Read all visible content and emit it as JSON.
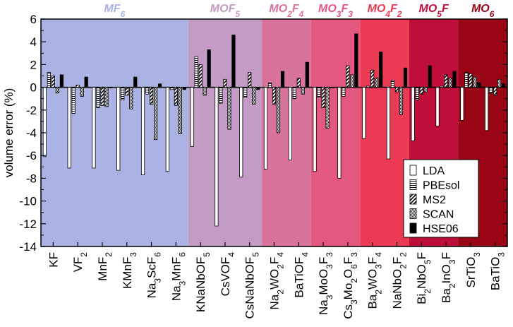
{
  "chart_data": {
    "type": "bar",
    "ylabel": "volume error (%)",
    "ylim": [
      -14,
      6
    ],
    "yticks": [
      -14,
      -12,
      -10,
      -8,
      -6,
      -4,
      -2,
      0,
      2,
      4,
      6
    ],
    "categories": [
      {
        "label": "KF",
        "rich": [
          "KF"
        ]
      },
      {
        "label": "VF2",
        "rich": [
          "VF",
          {
            "s": "2"
          }
        ]
      },
      {
        "label": "MnF2",
        "rich": [
          "MnF",
          {
            "s": "2"
          }
        ]
      },
      {
        "label": "KMnF3",
        "rich": [
          "KMnF",
          {
            "s": "3"
          }
        ]
      },
      {
        "label": "Na3ScF6",
        "rich": [
          "Na",
          {
            "s": "3"
          },
          "ScF",
          {
            "s": "6"
          }
        ]
      },
      {
        "label": "Na3MnF6",
        "rich": [
          "Na",
          {
            "s": "3"
          },
          "MnF",
          {
            "s": "6"
          }
        ]
      },
      {
        "label": "KNaNbOF5",
        "rich": [
          "KNaNbOF",
          {
            "s": "5"
          }
        ]
      },
      {
        "label": "CsVOF4",
        "rich": [
          "CsVOF",
          {
            "s": "4"
          }
        ]
      },
      {
        "label": "CsNaNbOF5",
        "rich": [
          "CsNaNbOF",
          {
            "s": "5"
          }
        ]
      },
      {
        "label": "Na2WO2F4",
        "rich": [
          "Na",
          {
            "s": "2"
          },
          "WO",
          {
            "s": "2"
          },
          "F",
          {
            "s": "4"
          }
        ]
      },
      {
        "label": "BaTiOF4",
        "rich": [
          "BaTiOF",
          {
            "s": "4"
          }
        ]
      },
      {
        "label": "Na3MoO3F3",
        "rich": [
          "Na",
          {
            "s": "3"
          },
          "MoO",
          {
            "s": "3"
          },
          "F",
          {
            "s": "3"
          }
        ]
      },
      {
        "label": "Cs3Mo2O6F3",
        "rich": [
          "Cs",
          {
            "s": "3"
          },
          "Mo",
          {
            "s": "2"
          },
          "O",
          {
            "s": "6"
          },
          "F",
          {
            "s": "3"
          }
        ]
      },
      {
        "label": "Ba2WO3F4",
        "rich": [
          "Ba",
          {
            "s": "2"
          },
          "WO",
          {
            "s": "3"
          },
          "F",
          {
            "s": "4"
          }
        ]
      },
      {
        "label": "NaNbO2F2",
        "rich": [
          "NaNbO",
          {
            "s": "2"
          },
          "F",
          {
            "s": "2"
          }
        ]
      },
      {
        "label": "Bi2NbO5F",
        "rich": [
          "Bi",
          {
            "s": "2"
          },
          "NbO",
          {
            "s": "5"
          },
          "F"
        ]
      },
      {
        "label": "Ba2InO3F",
        "rich": [
          "Ba",
          {
            "s": "2"
          },
          "InO",
          {
            "s": "3"
          },
          "F"
        ]
      },
      {
        "label": "SrTiO3",
        "rich": [
          "SrTiO",
          {
            "s": "3"
          }
        ]
      },
      {
        "label": "BaTiO3",
        "rich": [
          "BaTiO",
          {
            "s": "3"
          }
        ]
      }
    ],
    "series": [
      {
        "name": "LDA",
        "pattern": "white",
        "values": [
          -6.1,
          -7.1,
          -7.1,
          -7.3,
          -7.7,
          -7.4,
          -5.2,
          -12.2,
          -7.9,
          -7.2,
          -6.4,
          -7.4,
          -8.0,
          -4.5,
          -6.3,
          -4.7,
          -3.4,
          -2.9,
          -3.8
        ]
      },
      {
        "name": "PBEsol",
        "pattern": "hstripe",
        "values": [
          1.3,
          -2.3,
          -1.8,
          -1.1,
          -0.6,
          -0.2,
          2.7,
          -1.4,
          -0.9,
          0.4,
          -1.0,
          -0.9,
          -0.8,
          0.1,
          0.6,
          -1.1,
          0.1,
          1.3,
          -0.5
        ]
      },
      {
        "name": "MS2",
        "pattern": "diag",
        "values": [
          1.0,
          0.2,
          -1.6,
          -0.7,
          -1.5,
          -1.6,
          2.0,
          0.7,
          1.3,
          -1.5,
          0.8,
          -1.8,
          1.9,
          1.5,
          -0.4,
          -0.6,
          1.1,
          1.2,
          -0.7
        ]
      },
      {
        "name": "SCAN",
        "pattern": "checker",
        "values": [
          -0.5,
          -0.8,
          -1.7,
          -1.9,
          -4.6,
          -4.1,
          -0.7,
          -3.7,
          -1.5,
          -4.0,
          -0.6,
          -3.6,
          1.1,
          0.8,
          -2.4,
          -0.4,
          0.8,
          0.9,
          0.7
        ]
      },
      {
        "name": "HSE06",
        "pattern": "black",
        "values": [
          1.1,
          0.9,
          0.0,
          0.9,
          0.3,
          -0.2,
          3.3,
          4.6,
          -0.2,
          1.4,
          2.2,
          0.0,
          4.7,
          3.1,
          1.7,
          1.9,
          1.4,
          0.4,
          0.3
        ]
      }
    ],
    "groups": [
      {
        "label_parts": [
          {
            "t": "M",
            "i": true
          },
          {
            "t": "F"
          },
          {
            "t": "6",
            "s": true
          }
        ],
        "start": 0,
        "count": 6,
        "bg": "#aab3e4",
        "text_color": "#aab3e4"
      },
      {
        "label_parts": [
          {
            "t": "M",
            "i": true
          },
          {
            "t": "OF"
          },
          {
            "t": "5",
            "s": true
          }
        ],
        "start": 6,
        "count": 3,
        "bg": "#c39bc4",
        "text_color": "#c39bc4"
      },
      {
        "label_parts": [
          {
            "t": "M",
            "i": true
          },
          {
            "t": "O"
          },
          {
            "t": "2",
            "s": true
          },
          {
            "t": "F"
          },
          {
            "t": "4",
            "s": true
          }
        ],
        "start": 9,
        "count": 2,
        "bg": "#d8739b",
        "text_color": "#d8739b"
      },
      {
        "label_parts": [
          {
            "t": "M",
            "i": true
          },
          {
            "t": "O"
          },
          {
            "t": "3",
            "s": true
          },
          {
            "t": "F"
          },
          {
            "t": "3",
            "s": true
          }
        ],
        "start": 11,
        "count": 2,
        "bg": "#e25881",
        "text_color": "#e25881"
      },
      {
        "label_parts": [
          {
            "t": "M",
            "i": true
          },
          {
            "t": "O"
          },
          {
            "t": "4",
            "s": true
          },
          {
            "t": "F"
          },
          {
            "t": "2",
            "s": true
          }
        ],
        "start": 13,
        "count": 2,
        "bg": "#ec3a55",
        "text_color": "#ec3a55"
      },
      {
        "label_parts": [
          {
            "t": "M",
            "i": true
          },
          {
            "t": "O"
          },
          {
            "t": "5",
            "s": true
          },
          {
            "t": "F"
          }
        ],
        "start": 15,
        "count": 2,
        "bg": "#bf0e3a",
        "text_color": "#bf0e3a"
      },
      {
        "label_parts": [
          {
            "t": "M",
            "i": true
          },
          {
            "t": "O"
          },
          {
            "t": "6",
            "s": true
          }
        ],
        "start": 17,
        "count": 2,
        "bg": "#9a0516",
        "text_color": "#9a0516"
      }
    ],
    "legend_position": "lower-right"
  }
}
